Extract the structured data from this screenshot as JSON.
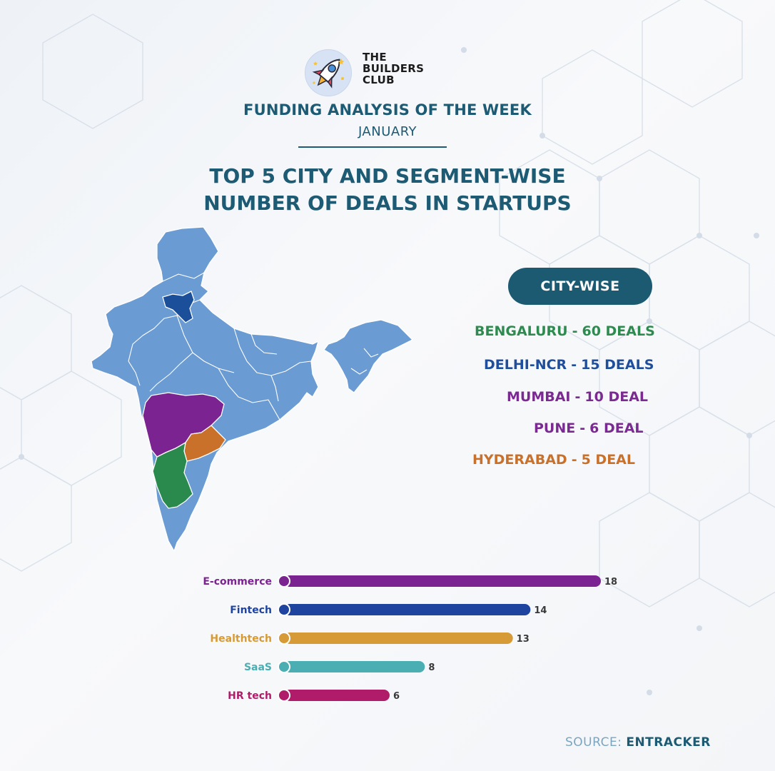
{
  "logo": {
    "line1": "THE",
    "line2": "BUILDERS",
    "line3": "CLUB",
    "icon": "rocket-icon"
  },
  "header": {
    "headline": "FUNDING ANALYSIS OF THE WEEK",
    "subheadline": "JANUARY"
  },
  "title": {
    "line1": "TOP 5 CITY AND SEGMENT-WISE",
    "line2": "NUMBER OF DEALS IN STARTUPS"
  },
  "map": {
    "base_color": "#6a9bd3",
    "highlight_colors": {
      "karnataka": "#2a8a4e",
      "delhi_ncr": "#1b4f9a",
      "maharashtra": "#7b2391",
      "telangana": "#c9702a"
    }
  },
  "city_section": {
    "label": "CITY-WISE",
    "cities": [
      {
        "name": "BENGALURU",
        "deals": "60 DEALS",
        "color": "#2e8b4f"
      },
      {
        "name": "DELHI-NCR",
        "deals": "15 DEALS",
        "color": "#1f4f9c"
      },
      {
        "name": "MUMBAI",
        "deals": "10 DEAL",
        "color": "#7a2a91"
      },
      {
        "name": "PUNE",
        "deals": "6 DEAL",
        "color": "#7a2a91"
      },
      {
        "name": "HYDERABAD",
        "deals": "5 DEAL",
        "color": "#c9702a"
      }
    ]
  },
  "chart_data": {
    "type": "bar",
    "orientation": "horizontal",
    "title": "",
    "xlabel": "",
    "ylabel": "",
    "categories": [
      "E-commerce",
      "Fintech",
      "Healthtech",
      "SaaS",
      "HR tech"
    ],
    "values": [
      18,
      14,
      13,
      8,
      6
    ],
    "colors": [
      "#7b2391",
      "#1f44a0",
      "#d69a36",
      "#4aaeb3",
      "#b01c6a"
    ],
    "xlim": [
      0,
      18
    ],
    "grid": false,
    "legend": "none"
  },
  "source": {
    "label": "SOURCE:",
    "value": "ENTRACKER"
  }
}
